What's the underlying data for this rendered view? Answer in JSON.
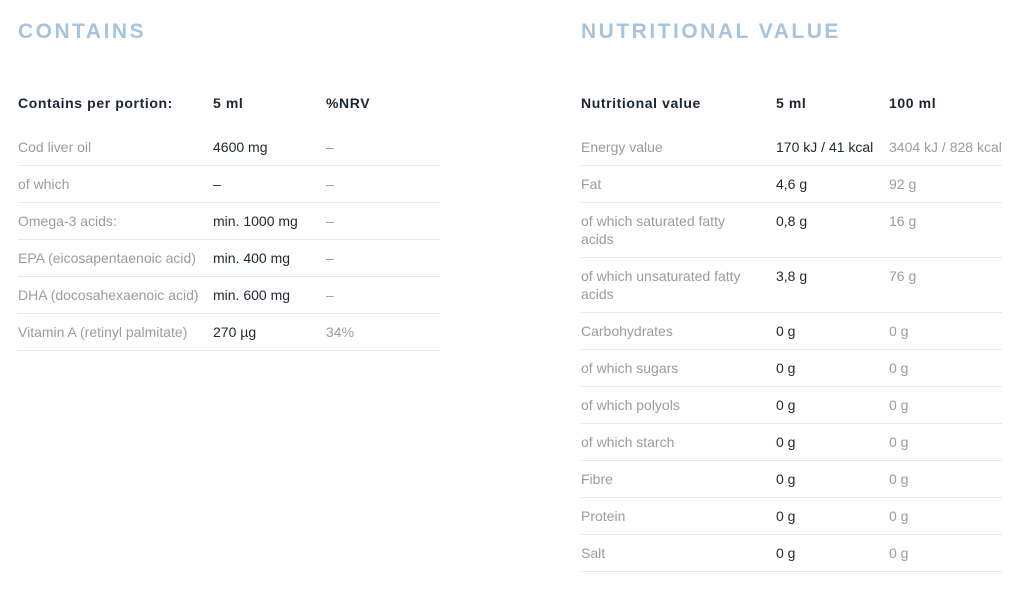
{
  "colors": {
    "title-blue": "#a6c4df",
    "header-dark": "#1d2530",
    "label-gray": "#9b9ba1",
    "value-dark": "#232935",
    "muted-gray": "#9b9ba1",
    "border-gray": "#e9e9ed",
    "page-bg": "#ffffff"
  },
  "contains": {
    "title": "CONTAINS",
    "headers": [
      "Contains per portion:",
      "5 ml",
      "%NRV"
    ],
    "rows": [
      {
        "label": "Cod liver oil",
        "v1": "4600 mg",
        "v2": "–"
      },
      {
        "label": "of which",
        "v1": "–",
        "v2": "–"
      },
      {
        "label": "Omega-3 acids:",
        "v1": "min. 1000 mg",
        "v2": "–"
      },
      {
        "label": "EPA (eicosapentaenoic acid)",
        "v1": "min. 400 mg",
        "v2": "–"
      },
      {
        "label": "DHA (docosahexaenoic acid)",
        "v1": "min. 600 mg",
        "v2": "–"
      },
      {
        "label": "Vitamin A (retinyl palmitate)",
        "v1": "270 µg",
        "v2": "34%"
      }
    ]
  },
  "nutritional": {
    "title": "NUTRITIONAL VALUE",
    "headers": [
      "Nutritional value",
      "5 ml",
      "100 ml"
    ],
    "rows": [
      {
        "label": "Energy value",
        "v1": "170 kJ / 41 kcal",
        "v2": "3404 kJ / 828 kcal"
      },
      {
        "label": "Fat",
        "v1": "4,6 g",
        "v2": "92 g"
      },
      {
        "label": "of which saturated fatty acids",
        "v1": "0,8 g",
        "v2": "16 g"
      },
      {
        "label": "of which unsaturated fatty acids",
        "v1": "3,8 g",
        "v2": "76 g"
      },
      {
        "label": "Carbohydrates",
        "v1": "0 g",
        "v2": "0 g"
      },
      {
        "label": "of which sugars",
        "v1": "0 g",
        "v2": "0 g"
      },
      {
        "label": "of which polyols",
        "v1": "0 g",
        "v2": "0 g"
      },
      {
        "label": "of which starch",
        "v1": "0 g",
        "v2": "0 g"
      },
      {
        "label": "Fibre",
        "v1": "0 g",
        "v2": "0 g"
      },
      {
        "label": "Protein",
        "v1": "0 g",
        "v2": "0 g"
      },
      {
        "label": "Salt",
        "v1": "0 g",
        "v2": "0 g"
      }
    ]
  }
}
